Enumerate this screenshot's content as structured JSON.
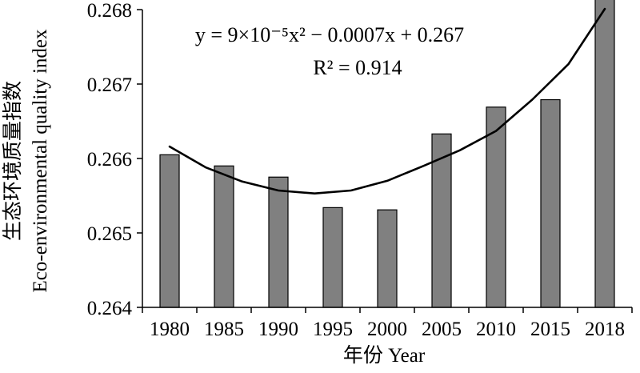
{
  "chart_data": {
    "type": "bar",
    "categories": [
      "1980",
      "1985",
      "1990",
      "1995",
      "2000",
      "2005",
      "2010",
      "2015",
      "2018"
    ],
    "values": [
      0.26605,
      0.2659,
      0.26575,
      0.26534,
      0.26531,
      0.26633,
      0.26669,
      0.26679,
      0.26817
    ],
    "xlabel": "年份 Year",
    "ylabel_line1": "生态环境质量指数",
    "ylabel_line2": "Eco-environmental quality index",
    "ylim": [
      0.264,
      0.268
    ],
    "yticks": [
      "0.264",
      "0.265",
      "0.266",
      "0.267",
      "0.268"
    ],
    "fit": {
      "type": "quadratic",
      "equation": "y = 9×10⁻⁵x² − 0.0007x + 0.267",
      "r_squared_text": "R² = 0.914",
      "points": [
        0.26616,
        0.26588,
        0.26569,
        0.26557,
        0.26553,
        0.26557,
        0.2657,
        0.2659,
        0.26611,
        0.26637,
        0.26679,
        0.26727,
        0.26801
      ]
    },
    "colors": {
      "bar_fill": "#808080",
      "bar_stroke": "#000000",
      "fit_line": "#000000"
    },
    "grid": false,
    "legend": "none"
  }
}
